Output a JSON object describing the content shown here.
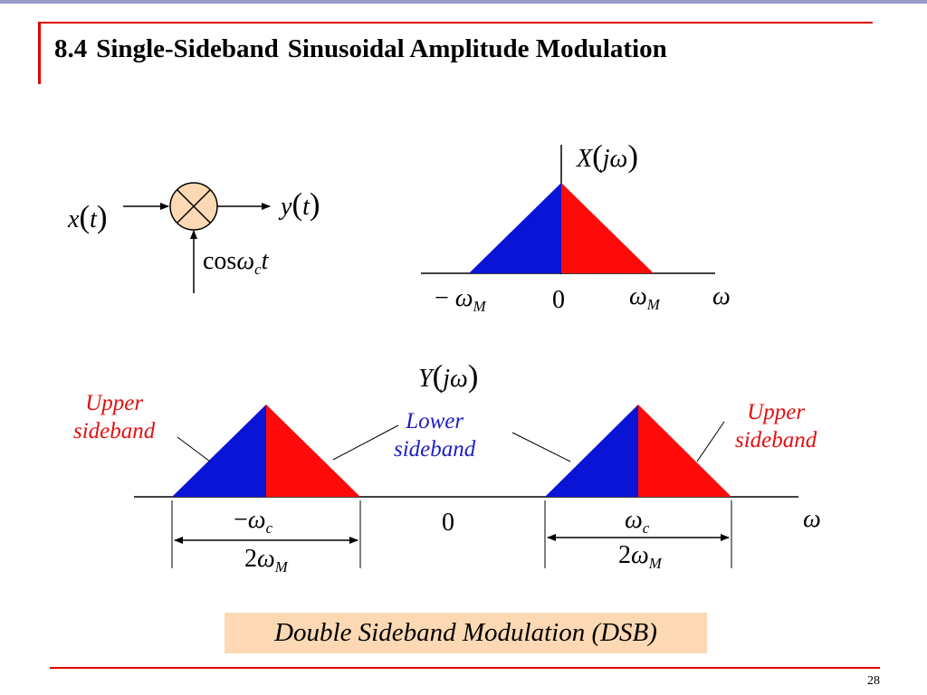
{
  "slide": {
    "section_number": "8.4",
    "title_part1": "Single-Sideband",
    "title_part2": "Sinusoidal Amplitude Modulation",
    "page_number": "28"
  },
  "block_diagram": {
    "input_var": "x",
    "output_var": "y",
    "time_var": "t",
    "carrier_fn": "cos",
    "carrier_omega": "ω",
    "carrier_sub": "c",
    "carrier_t": "t",
    "mixer_fill": "#fcd9b4"
  },
  "spectrum_x": {
    "label_var": "X",
    "label_arg": "jω",
    "neg_edge_sign": "−",
    "edge_omega": "ω",
    "edge_sub": "M",
    "zero": "0",
    "axis_var": "ω"
  },
  "spectrum_y": {
    "label_var": "Y",
    "label_arg": "jω",
    "neg_center_sign": "−",
    "center_omega": "ω",
    "center_sub": "c",
    "zero": "0",
    "axis_var": "ω",
    "width_coef": "2",
    "width_omega": "ω",
    "width_sub": "M"
  },
  "annotations": {
    "upper_left_line1": "Upper",
    "upper_left_line2": "sideband",
    "lower_line1": "Lower",
    "lower_line2": "sideband",
    "upper_right_line1": "Upper",
    "upper_right_line2": "sideband"
  },
  "caption": "Double Sideband Modulation (DSB)",
  "colors": {
    "lower_half": "#0a14d6",
    "upper_half": "#ff0a0a",
    "accent_red": "#e00000",
    "annotation_red": "#e01010",
    "annotation_blue": "#2020c0",
    "caption_bg": "#fcd9b4"
  }
}
